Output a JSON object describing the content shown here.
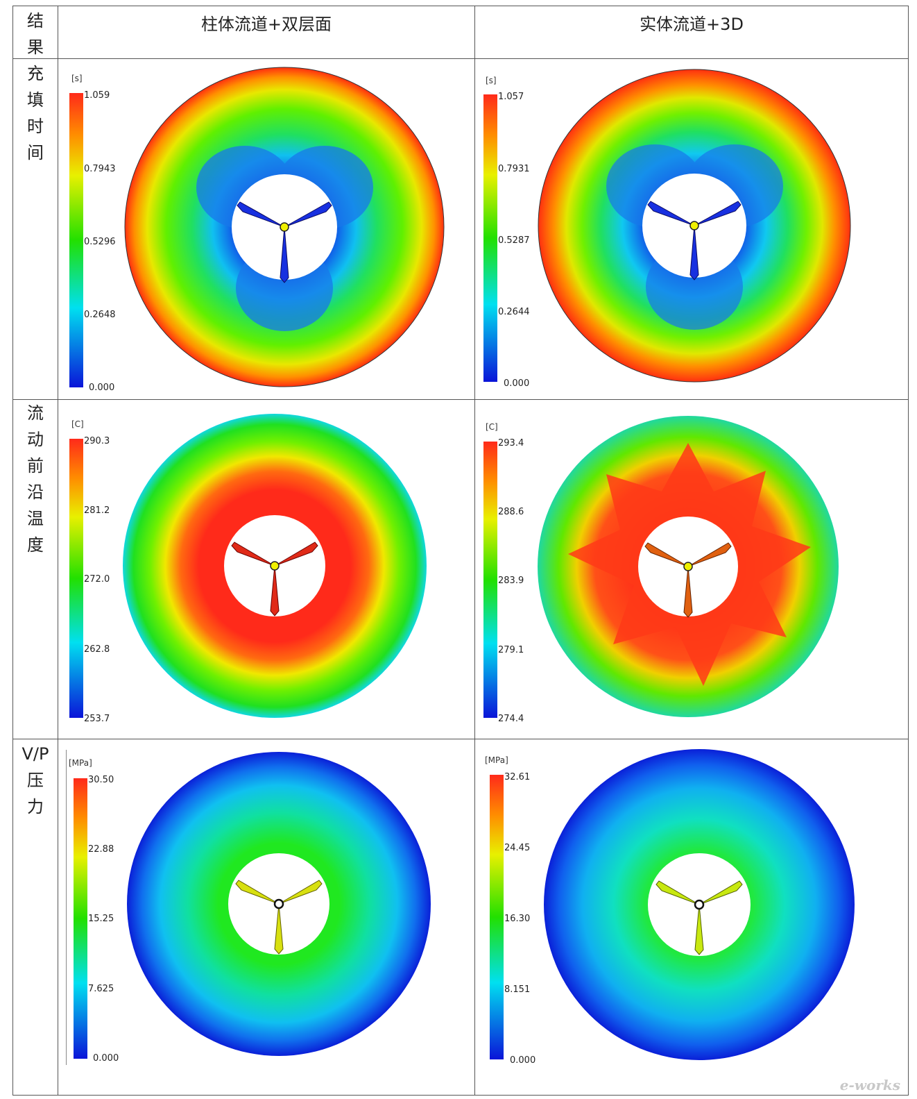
{
  "table": {
    "corner_label": [
      "结",
      "果"
    ],
    "col_headers": [
      "柱体流道+双层面",
      "实体流道+3D"
    ],
    "rows": [
      {
        "label": [
          "充",
          "填",
          "时",
          "间"
        ],
        "left": {
          "unit": "[s]",
          "ticks": [
            "1.059",
            "0.7943",
            "0.5296",
            "0.2648",
            "0.000"
          ]
        },
        "right": {
          "unit": "[s]",
          "ticks": [
            "1.057",
            "0.7931",
            "0.5287",
            "0.2644",
            "0.000"
          ]
        }
      },
      {
        "label": [
          "流",
          "动",
          "前",
          "沿",
          "温",
          "度"
        ],
        "left": {
          "unit": "[C]",
          "ticks": [
            "290.3",
            "281.2",
            "272.0",
            "262.8",
            "253.7"
          ]
        },
        "right": {
          "unit": "[C]",
          "ticks": [
            "293.4",
            "288.6",
            "283.9",
            "279.1",
            "274.4"
          ]
        }
      },
      {
        "label": [
          "V/P",
          "压",
          "力"
        ],
        "left": {
          "unit": "[MPa]",
          "ticks": [
            "30.50",
            "22.88",
            "15.25",
            "7.625",
            "0.000"
          ]
        },
        "right": {
          "unit": "[MPa]",
          "ticks": [
            "32.61",
            "24.45",
            "16.30",
            "8.151",
            "0.000"
          ]
        }
      }
    ]
  },
  "watermark": "e-works",
  "colors": {
    "red": "#ff2a1a",
    "orange": "#ff8c00",
    "yellow": "#e8f000",
    "green": "#22e000",
    "cyan": "#00e0f0",
    "blue": "#0a14d8"
  }
}
